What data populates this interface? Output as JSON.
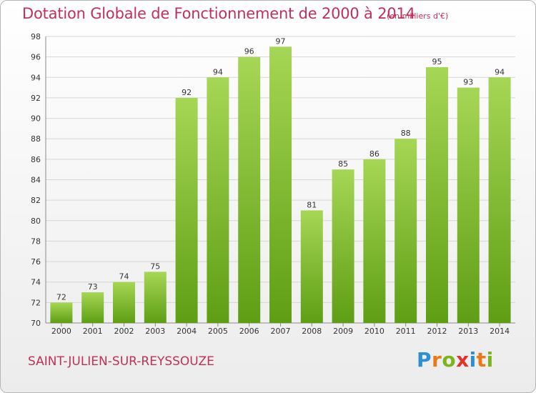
{
  "title": "Dotation Globale de Fonctionnement de 2000 à 2014",
  "subtitle": "(en milliers d'€)",
  "place": "SAINT-JULIEN-SUR-REYSSOUZE",
  "logo": {
    "letters": [
      "P",
      "r",
      "o",
      "x",
      "i",
      "t",
      "i"
    ],
    "colors": [
      "#2a8fd3",
      "#e87a1a",
      "#7ab51d",
      "#e5312e",
      "#2a8fd3",
      "#e87a1a",
      "#7ab51d"
    ]
  },
  "colors": {
    "accent": "#c0305a",
    "bar_light": "#a6d655",
    "bar_dark": "#5e9e14"
  },
  "chart_data": {
    "type": "bar",
    "categories": [
      "2000",
      "2001",
      "2002",
      "2003",
      "2004",
      "2005",
      "2006",
      "2007",
      "2008",
      "2009",
      "2010",
      "2011",
      "2012",
      "2013",
      "2014"
    ],
    "values": [
      72,
      73,
      74,
      75,
      92,
      94,
      96,
      97,
      81,
      85,
      86,
      88,
      95,
      93,
      94
    ],
    "ylim": [
      70,
      98
    ],
    "yticks": [
      70,
      72,
      74,
      76,
      78,
      80,
      82,
      84,
      86,
      88,
      90,
      92,
      94,
      96,
      98
    ],
    "grid": true,
    "data_labels": true
  }
}
